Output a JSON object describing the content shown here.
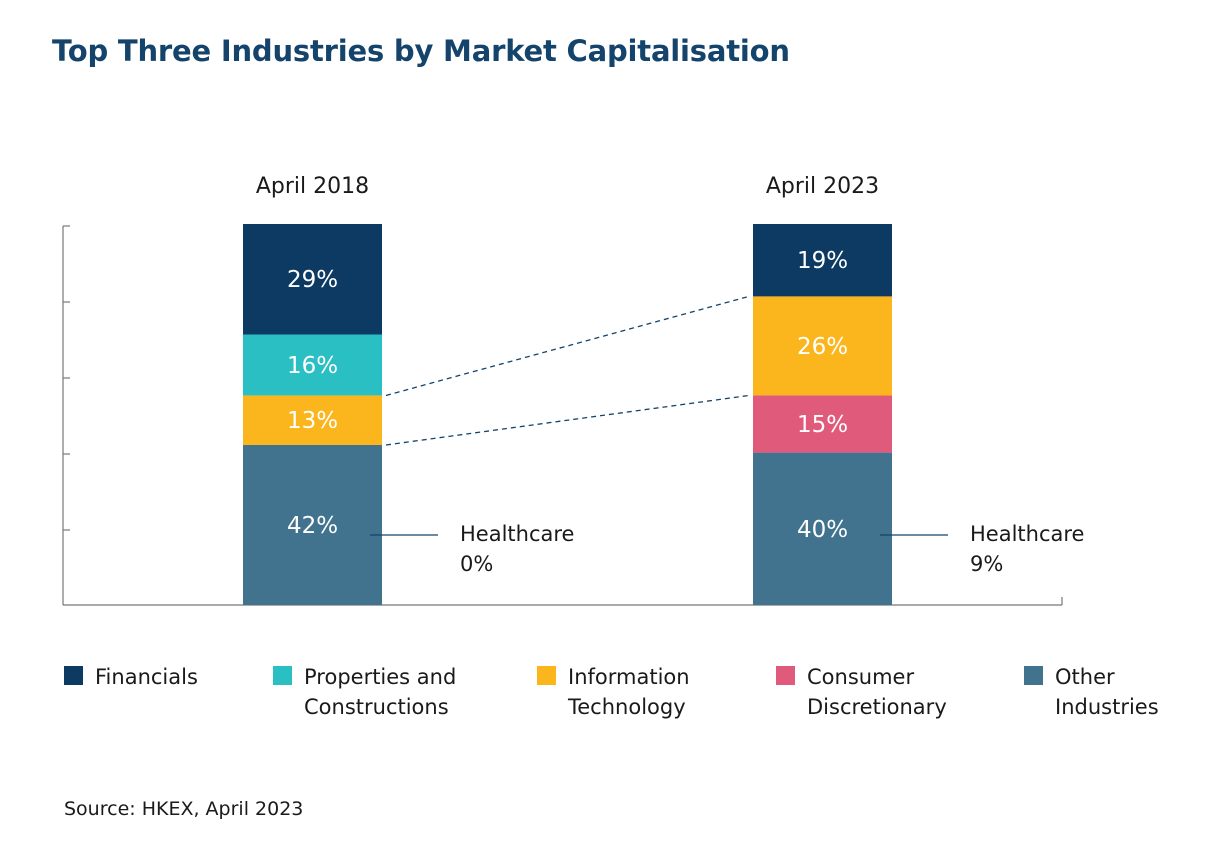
{
  "page": {
    "title": "Top Three Industries by Market Capitalisation",
    "source": "Source: HKEX, April 2023"
  },
  "chart_data": {
    "type": "bar",
    "stacked": true,
    "categories": [
      "April 2018",
      "April 2023"
    ],
    "series": [
      {
        "name": "Other Industries",
        "color": "#41738e",
        "values": [
          42,
          40
        ],
        "labels": [
          "42%",
          "40%"
        ]
      },
      {
        "name": "Consumer Discretionary",
        "color": "#e05a7c",
        "values": [
          0,
          15
        ],
        "labels": [
          "",
          "15%"
        ]
      },
      {
        "name": "Information Technology",
        "color": "#fbb51d",
        "values": [
          13,
          26
        ],
        "labels": [
          "13%",
          "26%"
        ]
      },
      {
        "name": "Properties and Constructions",
        "color": "#2abfc2",
        "values": [
          16,
          0
        ],
        "labels": [
          "16%",
          ""
        ]
      },
      {
        "name": "Financials",
        "color": "#0c3a62",
        "values": [
          29,
          19
        ],
        "labels": [
          "29%",
          "19%"
        ]
      }
    ],
    "legend_order": [
      4,
      3,
      2,
      1,
      0
    ],
    "legend_labels": {
      "Financials": "Financials",
      "Properties and Constructions": "Properties and\nConstructions",
      "Information Technology": "Information\nTechnology",
      "Consumer Discretionary": "Consumer\nDiscretionary",
      "Other Industries": "Other\nIndustries"
    },
    "annotations": [
      {
        "category": "April 2018",
        "text_line1": "Healthcare",
        "text_line2": "0%"
      },
      {
        "category": "April 2023",
        "text_line1": "Healthcare",
        "text_line2": "9%"
      }
    ],
    "connector_series": "Information Technology",
    "legend_position": "bottom",
    "grid": false
  }
}
